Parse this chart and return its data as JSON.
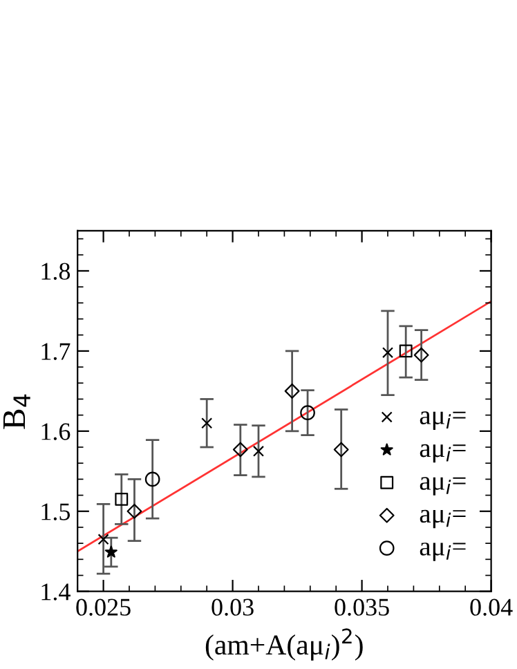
{
  "chart_data": {
    "type": "scatter",
    "xlabel": "(am+A(aμ$_{i}$)$^{2}$)",
    "ylabel": "B$_{4}$",
    "xlim": [
      0.024,
      0.04
    ],
    "xticks": [
      0.025,
      0.03,
      0.035,
      0.04
    ],
    "ylim": [
      1.4,
      1.85
    ],
    "yticks": [
      1.4,
      1.5,
      1.6,
      1.7,
      1.8
    ],
    "grid": false,
    "legend": "right",
    "series": [
      {
        "name": "aμ$_{i}$=",
        "color": "#000000",
        "marker": "cross",
        "x": [
          0.025,
          0.029,
          0.031,
          0.036
        ],
        "values": [
          1.465,
          1.61,
          1.575,
          1.698
        ],
        "errors": [
          [
            1.422,
            1.509
          ],
          [
            1.58,
            1.64
          ],
          [
            1.543,
            1.607
          ],
          [
            1.645,
            1.75
          ]
        ]
      },
      {
        "name": "aμ$_{i}$=",
        "color": "#000000",
        "marker": "star",
        "x": [
          0.0253
        ],
        "values": [
          1.449
        ],
        "errors": [
          [
            1.431,
            1.467
          ]
        ]
      },
      {
        "name": "aμ$_{i}$=",
        "color": "#000000",
        "marker": "square",
        "x": [
          0.0257,
          0.0367
        ],
        "values": [
          1.515,
          1.7
        ],
        "errors": [
          [
            1.484,
            1.546
          ],
          [
            1.667,
            1.731
          ]
        ]
      },
      {
        "name": "aμ$_{i}$=",
        "color": "#000000",
        "marker": "diamond",
        "x": [
          0.0262,
          0.0303,
          0.0323,
          0.0342,
          0.0373
        ],
        "values": [
          1.5,
          1.577,
          1.65,
          1.577,
          1.695
        ],
        "errors": [
          [
            1.463,
            1.54
          ],
          [
            1.545,
            1.608
          ],
          [
            1.6,
            1.7
          ],
          [
            1.528,
            1.627
          ],
          [
            1.664,
            1.726
          ]
        ]
      },
      {
        "name": "aμ$_{i}$=",
        "color": "#000000",
        "marker": "circle",
        "x": [
          0.0269,
          0.0329
        ],
        "values": [
          1.54,
          1.623
        ],
        "errors": [
          [
            1.491,
            1.589
          ],
          [
            1.595,
            1.651
          ]
        ]
      },
      {
        "type": "line",
        "color": "#ff3333",
        "line_style": "solid",
        "marker": "none",
        "x": [
          0.024,
          0.04
        ],
        "values": [
          1.45,
          1.762
        ]
      }
    ]
  }
}
